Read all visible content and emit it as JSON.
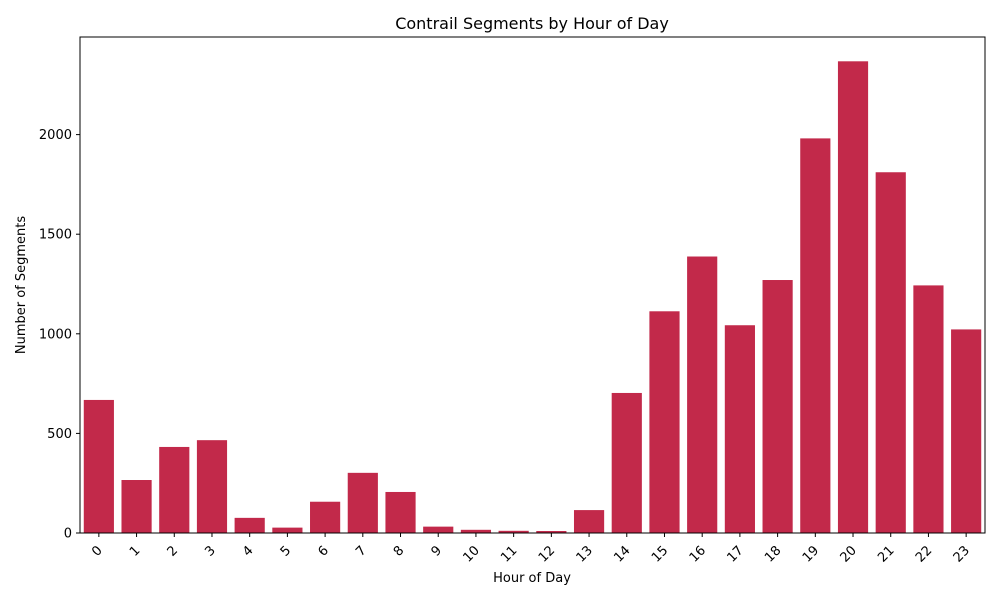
{
  "chart_data": {
    "type": "bar",
    "title": "Contrail Segments by Hour of Day",
    "xlabel": "Hour of Day",
    "ylabel": "Number of Segments",
    "categories": [
      "0",
      "1",
      "2",
      "3",
      "4",
      "5",
      "6",
      "7",
      "8",
      "9",
      "10",
      "11",
      "12",
      "13",
      "14",
      "15",
      "16",
      "17",
      "18",
      "19",
      "20",
      "21",
      "22",
      "23"
    ],
    "values": [
      668,
      266,
      432,
      466,
      76,
      27,
      157,
      302,
      206,
      32,
      16,
      11,
      10,
      115,
      703,
      1113,
      1388,
      1043,
      1270,
      1981,
      2368,
      1811,
      1243,
      1022
    ],
    "ylim": [
      0,
      2490
    ],
    "yticks": [
      0,
      500,
      1000,
      1500,
      2000
    ],
    "bar_color": "#c2294a",
    "grid": false,
    "legend": "none"
  }
}
